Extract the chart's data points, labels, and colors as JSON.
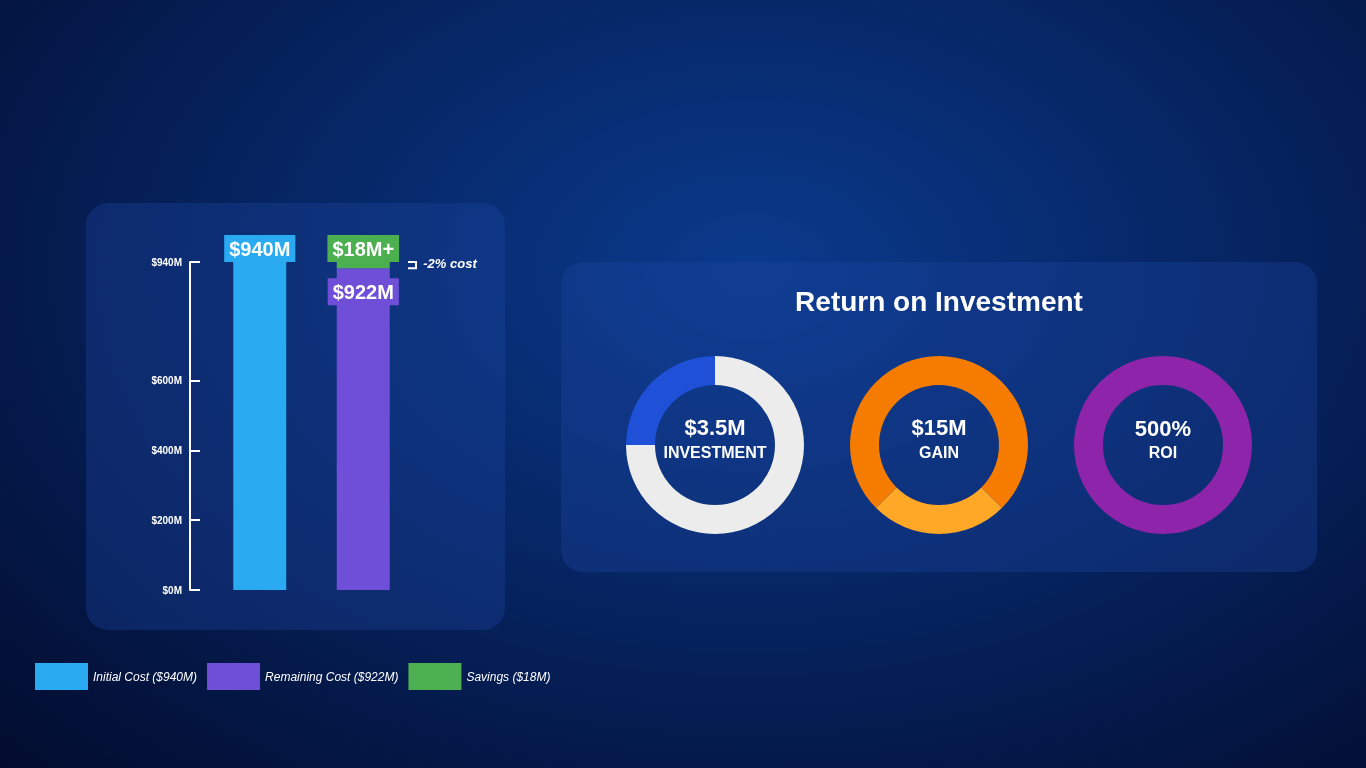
{
  "chart_data": [
    {
      "type": "bar",
      "categories": [
        null,
        null
      ],
      "stacked": true,
      "ylim": [
        0,
        940
      ],
      "yticks": [
        {
          "value": 0,
          "label": "$0M"
        },
        {
          "value": 200,
          "label": "$200M"
        },
        {
          "value": 400,
          "label": "$400M"
        },
        {
          "value": 600,
          "label": "$600M"
        },
        {
          "value": 940,
          "label": "$940M"
        }
      ],
      "series": [
        {
          "name": "Initial Cost ($940M)",
          "color": "#2aaaf0",
          "values": [
            940,
            null
          ],
          "value_labels": [
            "$940M",
            null
          ]
        },
        {
          "name": "Remaining Cost ($922M)",
          "color": "#6f4fd8",
          "values": [
            null,
            922
          ],
          "value_labels": [
            null,
            "$922M"
          ]
        },
        {
          "name": "Savings ($18M)",
          "color": "#4caf50",
          "values": [
            null,
            18
          ],
          "value_labels": [
            null,
            "$18M+"
          ]
        }
      ],
      "annotations": [
        "-2% cost"
      ],
      "legend": "bottom left",
      "grid": false
    },
    {
      "type": "other",
      "title": "Return on Investment"
    },
    {
      "type": "donut",
      "categories": [
        null,
        null
      ],
      "values": [
        25,
        75
      ],
      "colors": [
        "#1e50d8",
        "#ececec"
      ],
      "annotations": [
        "$3.5M",
        "INVESTMENT"
      ]
    },
    {
      "type": "donut",
      "categories": [
        null,
        null
      ],
      "values": [
        75,
        25
      ],
      "colors": [
        "#f57c00",
        "#ffa726"
      ],
      "annotations": [
        "$15M",
        "GAIN"
      ]
    },
    {
      "type": "other",
      "annotations": [
        "500%",
        "ROI"
      ]
    }
  ]
}
